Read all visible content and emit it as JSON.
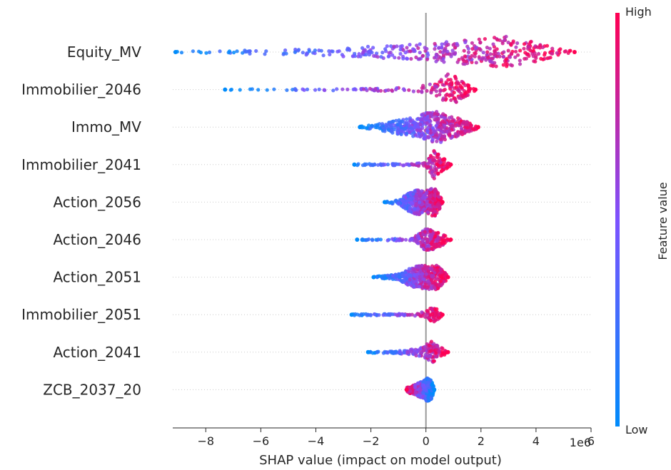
{
  "chart_data": {
    "type": "scatter",
    "title": "",
    "xlabel": "SHAP value (impact on model output)",
    "x_scale_note": "1e6",
    "xlim": [
      -9.2,
      6.0
    ],
    "xticks": [
      -8,
      -6,
      -4,
      -2,
      0,
      2,
      4,
      6
    ],
    "xtick_labels": [
      "−8",
      "−6",
      "−4",
      "−2",
      "0",
      "2",
      "4",
      "6"
    ],
    "colorbar": {
      "title": "Feature value",
      "high_label": "High",
      "low_label": "Low",
      "high_color": "#ff0052",
      "low_color": "#008bfb"
    },
    "features": [
      {
        "name": "Equity_MV",
        "min": -9.1,
        "max": 5.4,
        "low_side": "left",
        "density": [
          [
            -9.1,
            0.03
          ],
          [
            -8.5,
            0.06
          ],
          [
            -7,
            0.1
          ],
          [
            -5,
            0.16
          ],
          [
            -3,
            0.28
          ],
          [
            -1,
            0.45
          ],
          [
            0,
            0.55
          ],
          [
            1,
            0.7
          ],
          [
            2,
            0.9
          ],
          [
            3,
            1.0
          ],
          [
            4,
            0.6
          ],
          [
            4.8,
            0.25
          ],
          [
            5.4,
            0.05
          ]
        ]
      },
      {
        "name": "Immobilier_2046",
        "min": -7.3,
        "max": 1.8,
        "low_side": "left",
        "density": [
          [
            -7.3,
            0.03
          ],
          [
            -6,
            0.04
          ],
          [
            -3,
            0.06
          ],
          [
            -0.5,
            0.12
          ],
          [
            0,
            0.3
          ],
          [
            0.4,
            0.45
          ],
          [
            0.8,
            1.0
          ],
          [
            1.2,
            0.75
          ],
          [
            1.6,
            0.3
          ],
          [
            1.8,
            0.05
          ]
        ]
      },
      {
        "name": "Immo_MV",
        "min": -2.4,
        "max": 1.9,
        "low_side": "left",
        "density": [
          [
            -2.4,
            0.05
          ],
          [
            -1.8,
            0.18
          ],
          [
            -1,
            0.45
          ],
          [
            -0.3,
            0.7
          ],
          [
            0,
            0.9
          ],
          [
            0.5,
            1.0
          ],
          [
            1,
            0.7
          ],
          [
            1.5,
            0.35
          ],
          [
            1.9,
            0.08
          ]
        ]
      },
      {
        "name": "Immobilier_2041",
        "min": -2.6,
        "max": 0.9,
        "low_side": "left",
        "density": [
          [
            -2.6,
            0.04
          ],
          [
            -1.5,
            0.05
          ],
          [
            -0.5,
            0.06
          ],
          [
            0,
            0.15
          ],
          [
            0.3,
            0.9
          ],
          [
            0.5,
            0.6
          ],
          [
            0.9,
            0.05
          ]
        ]
      },
      {
        "name": "Action_2056",
        "min": -1.5,
        "max": 0.6,
        "low_side": "left",
        "density": [
          [
            -1.5,
            0.03
          ],
          [
            -1,
            0.15
          ],
          [
            -0.6,
            0.6
          ],
          [
            -0.3,
            0.8
          ],
          [
            0,
            0.7
          ],
          [
            0.3,
            1.0
          ],
          [
            0.6,
            0.1
          ]
        ]
      },
      {
        "name": "Action_2046",
        "min": -2.5,
        "max": 0.9,
        "low_side": "left",
        "density": [
          [
            -2.5,
            0.04
          ],
          [
            -1.5,
            0.05
          ],
          [
            -0.5,
            0.08
          ],
          [
            0,
            0.7
          ],
          [
            0.3,
            0.6
          ],
          [
            0.6,
            0.35
          ],
          [
            0.9,
            0.05
          ]
        ]
      },
      {
        "name": "Action_2051",
        "min": -1.9,
        "max": 0.8,
        "low_side": "left",
        "density": [
          [
            -1.9,
            0.04
          ],
          [
            -1,
            0.2
          ],
          [
            -0.4,
            0.7
          ],
          [
            0,
            0.75
          ],
          [
            0.4,
            0.8
          ],
          [
            0.8,
            0.1
          ]
        ]
      },
      {
        "name": "Immobilier_2051",
        "min": -2.7,
        "max": 0.6,
        "low_side": "left",
        "density": [
          [
            -2.7,
            0.04
          ],
          [
            -1.5,
            0.05
          ],
          [
            -0.3,
            0.08
          ],
          [
            0.1,
            0.3
          ],
          [
            0.25,
            0.6
          ],
          [
            0.6,
            0.05
          ]
        ]
      },
      {
        "name": "Action_2041",
        "min": -2.1,
        "max": 0.8,
        "low_side": "left",
        "density": [
          [
            -2.1,
            0.05
          ],
          [
            -1,
            0.08
          ],
          [
            -0.2,
            0.25
          ],
          [
            0.2,
            0.7
          ],
          [
            0.5,
            0.35
          ],
          [
            0.8,
            0.05
          ]
        ]
      },
      {
        "name": "ZCB_2037_20",
        "min": -0.7,
        "max": 0.3,
        "low_side": "right",
        "density": [
          [
            -0.7,
            0.15
          ],
          [
            -0.4,
            0.35
          ],
          [
            -0.1,
            0.55
          ],
          [
            0.05,
            0.75
          ],
          [
            0.2,
            0.6
          ],
          [
            0.3,
            0.1
          ]
        ]
      }
    ]
  }
}
